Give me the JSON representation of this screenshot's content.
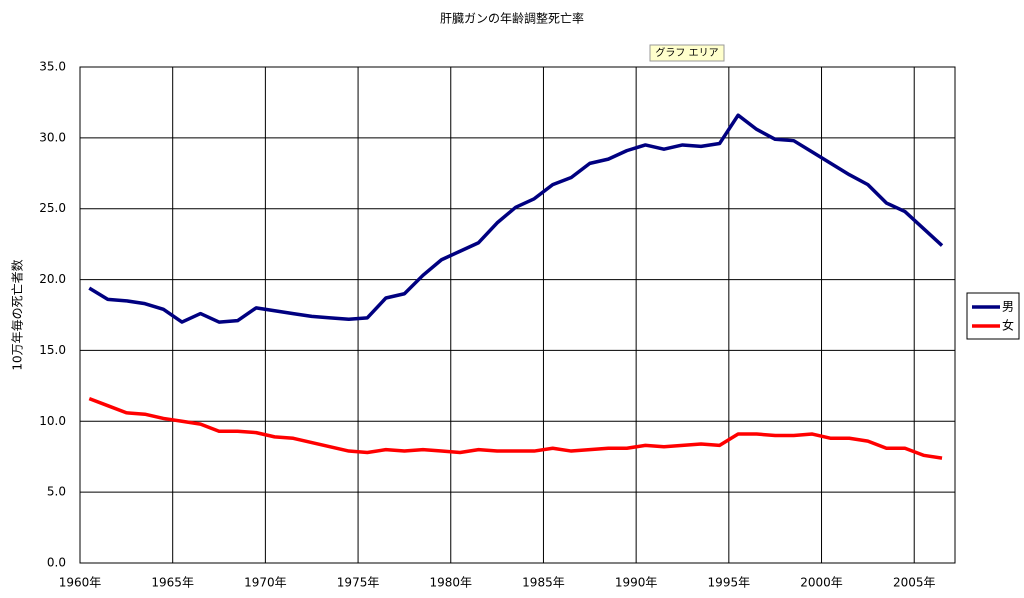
{
  "chart_data": {
    "type": "line",
    "title": "肝臓ガンの年齢調整死亡率",
    "y_label": "10万年毎の死亡者数",
    "annotation": "グラフ エリア",
    "x": [
      1960.5,
      1961.5,
      1962.5,
      1963.5,
      1964.5,
      1965.5,
      1966.5,
      1967.5,
      1968.5,
      1969.5,
      1970.5,
      1971.5,
      1972.5,
      1973.5,
      1974.5,
      1975.5,
      1976.5,
      1977.5,
      1978.5,
      1979.5,
      1980.5,
      1981.5,
      1982.5,
      1983.5,
      1984.5,
      1985.5,
      1986.5,
      1987.5,
      1988.5,
      1989.5,
      1990.5,
      1991.5,
      1992.5,
      1993.5,
      1994.5,
      1995.5,
      1996.5,
      1997.5,
      1998.5,
      1999.5,
      2000.5,
      2001.5,
      2002.5,
      2003.5,
      2004.5,
      2005.5,
      2006.5
    ],
    "series": [
      {
        "name": "男",
        "color": "#000080",
        "values": [
          19.4,
          18.6,
          18.5,
          18.3,
          17.9,
          17.0,
          17.6,
          17.0,
          17.1,
          18.0,
          17.8,
          17.6,
          17.4,
          17.3,
          17.2,
          17.3,
          18.7,
          19.0,
          20.3,
          21.4,
          22.0,
          22.6,
          24.0,
          25.1,
          25.7,
          26.7,
          27.2,
          28.2,
          28.5,
          29.1,
          29.5,
          29.2,
          29.5,
          29.4,
          29.6,
          31.6,
          30.6,
          29.9,
          29.8,
          29.0,
          28.2,
          27.4,
          26.7,
          25.4,
          24.8,
          23.6,
          22.4
        ]
      },
      {
        "name": "女",
        "color": "#ff0000",
        "values": [
          11.6,
          11.1,
          10.6,
          10.5,
          10.2,
          10.0,
          9.8,
          9.3,
          9.3,
          9.2,
          8.9,
          8.8,
          8.5,
          8.2,
          7.9,
          7.8,
          8.0,
          7.9,
          8.0,
          7.9,
          7.8,
          8.0,
          7.9,
          7.9,
          7.9,
          8.1,
          7.9,
          8.0,
          8.1,
          8.1,
          8.3,
          8.2,
          8.3,
          8.4,
          8.3,
          9.1,
          9.1,
          9.0,
          9.0,
          9.1,
          8.8,
          8.8,
          8.6,
          8.1,
          8.1,
          7.6,
          7.4
        ]
      }
    ],
    "xlim": [
      1960,
      2007.2
    ],
    "xticks": [
      {
        "value": 1960,
        "label": "1960年"
      },
      {
        "value": 1965,
        "label": "1965年"
      },
      {
        "value": 1970,
        "label": "1970年"
      },
      {
        "value": 1975,
        "label": "1975年"
      },
      {
        "value": 1980,
        "label": "1980年"
      },
      {
        "value": 1985,
        "label": "1985年"
      },
      {
        "value": 1990,
        "label": "1990年"
      },
      {
        "value": 1995,
        "label": "1995年"
      },
      {
        "value": 2000,
        "label": "2000年"
      },
      {
        "value": 2005,
        "label": "2005年"
      }
    ],
    "ylim": [
      0,
      35
    ],
    "yticks": [
      {
        "value": 0,
        "label": "0.0"
      },
      {
        "value": 5,
        "label": "5.0"
      },
      {
        "value": 10,
        "label": "10.0"
      },
      {
        "value": 15,
        "label": "15.0"
      },
      {
        "value": 20,
        "label": "20.0"
      },
      {
        "value": 25,
        "label": "25.0"
      },
      {
        "value": 30,
        "label": "30.0"
      },
      {
        "value": 35,
        "label": "35.0"
      }
    ],
    "grid": true,
    "legend": "right"
  }
}
